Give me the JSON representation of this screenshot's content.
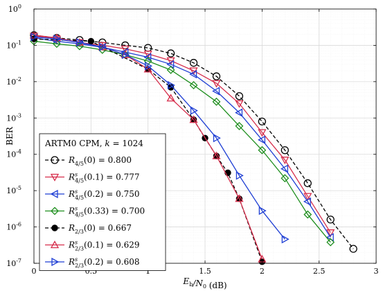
{
  "chart_data": {
    "type": "line",
    "title": "",
    "xlabel": "E_b/N_0 (dB)",
    "ylabel": "BER",
    "xlim": [
      0,
      3
    ],
    "ylim": [
      1e-07,
      1
    ],
    "yscale": "log",
    "grid": true,
    "x_ticks": [
      "0",
      "0.5",
      "1",
      "1.5",
      "2",
      "2.5",
      "3"
    ],
    "y_ticks": [
      "10^0",
      "10^-1",
      "10^-2",
      "10^-3",
      "10^-4",
      "10^-5",
      "10^-6",
      "10^-7"
    ],
    "legend": {
      "title": "ARTM0 CPM, k = 1024",
      "placement": "bottom-left"
    },
    "series": [
      {
        "name": "R_{4/5}(0) = 0.800",
        "color": "#000000",
        "dash": "dashed",
        "marker": "circle-open",
        "x": [
          0,
          0.2,
          0.4,
          0.6,
          0.8,
          1.0,
          1.2,
          1.4,
          1.6,
          1.8,
          2.0,
          2.2,
          2.4,
          2.6,
          2.8
        ],
        "y": [
          0.19,
          0.16,
          0.14,
          0.12,
          0.1,
          0.085,
          0.06,
          0.033,
          0.014,
          0.004,
          0.0008,
          0.00013,
          1.6e-05,
          1.6e-06,
          2.5e-07
        ]
      },
      {
        "name": "R^s_{4/5}(0.1) = 0.777",
        "color": "#d62e4c",
        "dash": "solid",
        "marker": "triangle-down-open",
        "x": [
          0,
          0.2,
          0.4,
          0.6,
          0.8,
          1.0,
          1.2,
          1.4,
          1.6,
          1.8,
          2.0,
          2.2,
          2.4,
          2.6
        ],
        "y": [
          0.18,
          0.15,
          0.12,
          0.1,
          0.08,
          0.058,
          0.038,
          0.02,
          0.009,
          0.0025,
          0.0004,
          7e-05,
          7e-06,
          7e-07
        ]
      },
      {
        "name": "R^s_{4/5}(0.2) = 0.750",
        "color": "#1f3fd4",
        "dash": "solid",
        "marker": "triangle-left-open",
        "x": [
          0,
          0.2,
          0.4,
          0.6,
          0.8,
          1.0,
          1.2,
          1.4,
          1.6,
          1.8,
          2.0,
          2.2,
          2.4,
          2.6
        ],
        "y": [
          0.16,
          0.13,
          0.11,
          0.088,
          0.065,
          0.047,
          0.03,
          0.016,
          0.0055,
          0.0014,
          0.00025,
          4e-05,
          5e-06,
          5.2e-07
        ]
      },
      {
        "name": "R^s_{4/5}(0.33) = 0.700",
        "color": "#1f8f1f",
        "dash": "solid",
        "marker": "diamond-open",
        "x": [
          0,
          0.2,
          0.4,
          0.6,
          0.8,
          1.0,
          1.2,
          1.4,
          1.6,
          1.8,
          2.0,
          2.2,
          2.4,
          2.6
        ],
        "y": [
          0.13,
          0.11,
          0.095,
          0.075,
          0.055,
          0.037,
          0.021,
          0.008,
          0.0028,
          0.0006,
          0.00013,
          2.2e-05,
          2.2e-06,
          3.8e-07
        ]
      },
      {
        "name": "R_{2/3}(0) = 0.667",
        "color": "#000000",
        "dash": "dashed",
        "marker": "circle-filled",
        "x": [
          0,
          0.5,
          1.0,
          1.2,
          1.4,
          1.5,
          1.6,
          1.7,
          1.8,
          2.0
        ],
        "y": [
          0.15,
          0.13,
          0.022,
          0.007,
          0.0009,
          0.00028,
          9e-05,
          3.1e-05,
          6e-06,
          1.1e-07
        ]
      },
      {
        "name": "R^s_{2/3}(0.1) = 0.629",
        "color": "#d62e4c",
        "dash": "solid",
        "marker": "triangle-up-open",
        "x": [
          0,
          0.2,
          0.4,
          0.6,
          0.8,
          1.0,
          1.2,
          1.4,
          1.6,
          1.8,
          2.0
        ],
        "y": [
          0.19,
          0.16,
          0.12,
          0.09,
          0.055,
          0.022,
          0.0035,
          0.0009,
          9e-05,
          6e-06,
          1.3e-07
        ]
      },
      {
        "name": "R^s_{2/3}(0.2) = 0.608",
        "color": "#1f3fd4",
        "dash": "solid",
        "marker": "triangle-right-open",
        "x": [
          0,
          0.2,
          0.4,
          0.6,
          0.8,
          1.0,
          1.2,
          1.4,
          1.6,
          1.8,
          2.0,
          2.2
        ],
        "y": [
          0.17,
          0.15,
          0.12,
          0.09,
          0.055,
          0.027,
          0.008,
          0.0016,
          0.00028,
          2.6e-05,
          2.8e-06,
          4.6e-07
        ]
      }
    ]
  }
}
